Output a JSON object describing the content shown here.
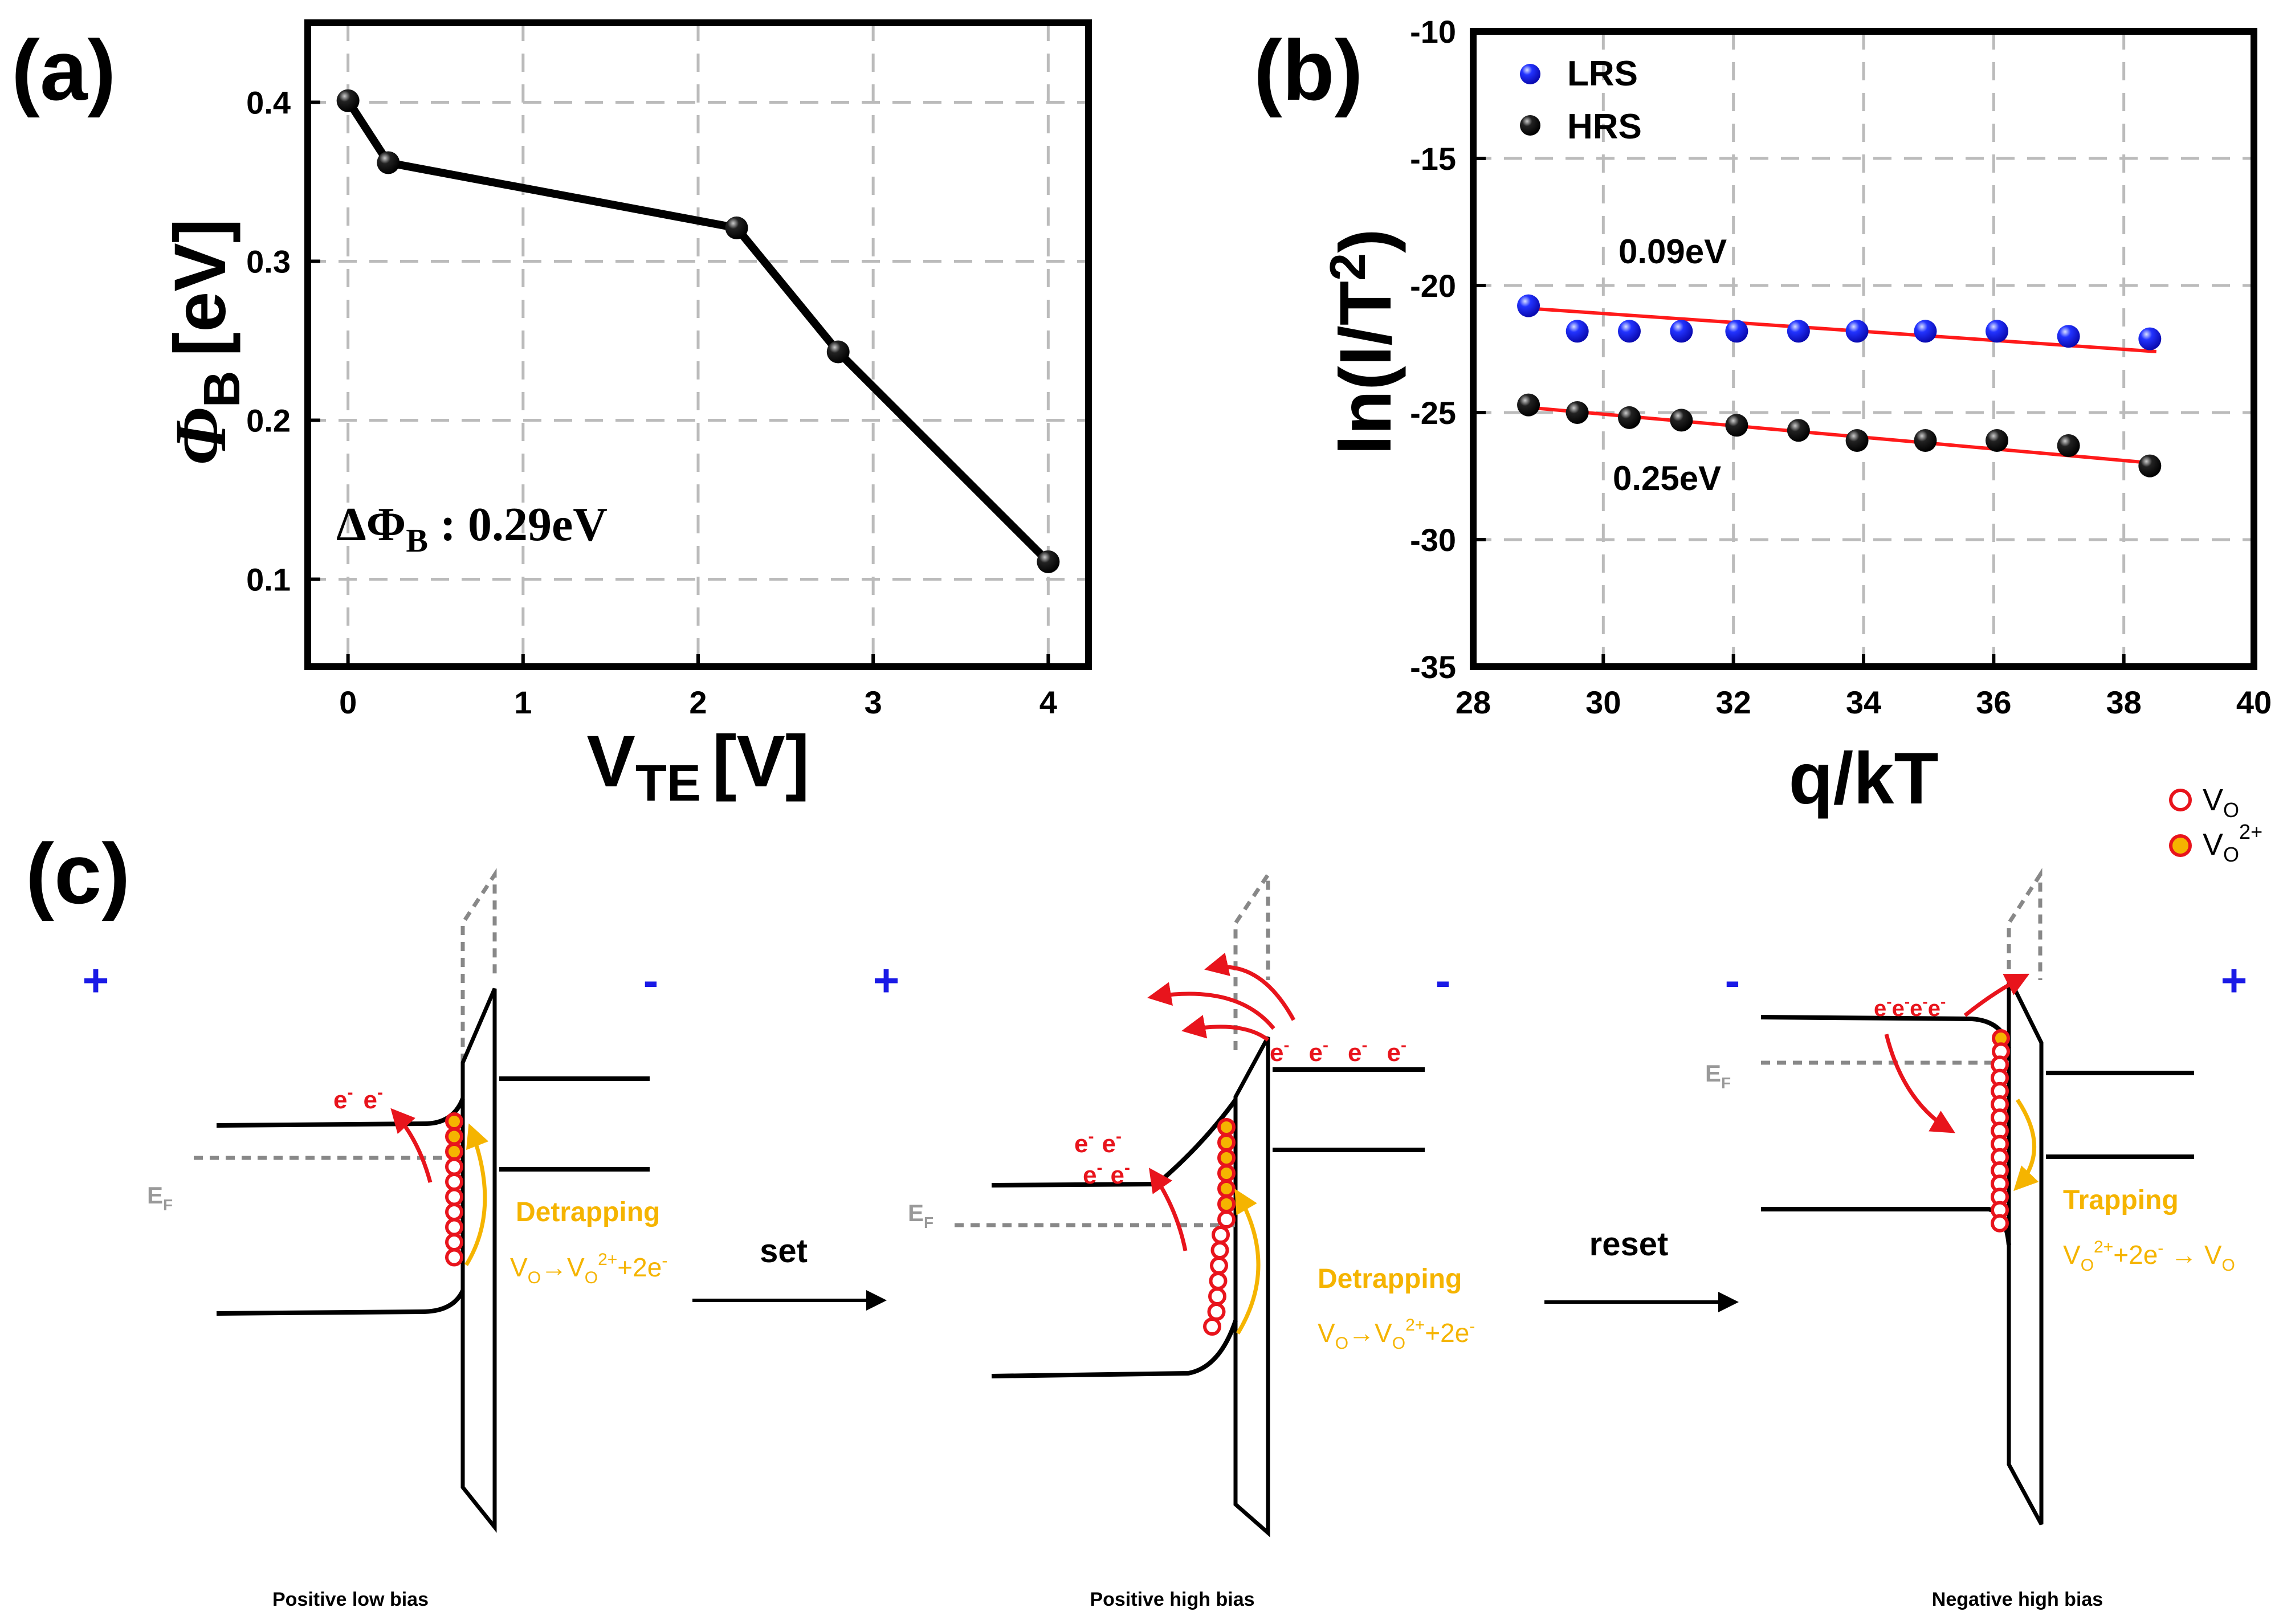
{
  "chart_data": [
    {
      "panel": "(a)",
      "type": "line",
      "xlabel": "V",
      "xlabel_sub": "TE",
      "xlabel_unit": "[V]",
      "ylabel_symbol": "Φ",
      "ylabel_sub": "B",
      "ylabel_unit": "[eV]",
      "x": [
        0,
        0.23,
        2.22,
        2.8,
        4.0
      ],
      "y": [
        0.401,
        0.362,
        0.321,
        0.243,
        0.111
      ],
      "xlim": [
        -0.23,
        4.23
      ],
      "ylim": [
        0.045,
        0.45
      ],
      "xticks": [
        0,
        1,
        2,
        3,
        4
      ],
      "xtick_labels": [
        "0",
        "1",
        "2",
        "3",
        "4"
      ],
      "yticks": [
        0.1,
        0.2,
        0.3,
        0.4
      ],
      "ytick_labels": [
        "0.1",
        "0.2",
        "0.3",
        "0.4"
      ],
      "grid": true,
      "annotation": {
        "prefix": "ΔΦ",
        "sub": "B",
        "text": " : 0.29eV"
      }
    },
    {
      "panel": "(b)",
      "type": "scatter",
      "xlabel": "q/kT",
      "ylabel_main": "ln(I/T",
      "ylabel_sup": "2",
      "ylabel_tail": ")",
      "xlim": [
        28,
        40
      ],
      "ylim": [
        -35,
        -10
      ],
      "xticks": [
        28,
        30,
        32,
        34,
        36,
        38,
        40
      ],
      "xtick_labels": [
        "28",
        "30",
        "32",
        "34",
        "36",
        "38",
        "40"
      ],
      "yticks": [
        -35,
        -30,
        -25,
        -20,
        -15,
        -10
      ],
      "ytick_labels": [
        "-35",
        "-30",
        "-25",
        "-20",
        "-15",
        "-10"
      ],
      "grid": true,
      "legend_position": "top-left",
      "series": [
        {
          "name": "LRS",
          "color": "#1f1fff",
          "x": [
            28.85,
            29.6,
            30.4,
            31.2,
            32.05,
            33.0,
            33.9,
            34.95,
            36.05,
            37.15,
            38.4
          ],
          "y": [
            -20.8,
            -21.8,
            -21.8,
            -21.8,
            -21.8,
            -21.8,
            -21.8,
            -21.8,
            -21.8,
            -22.0,
            -22.1
          ],
          "fit": {
            "x": [
              28.85,
              38.5
            ],
            "y": [
              -20.9,
              -22.6
            ]
          },
          "fit_label": "0.09eV"
        },
        {
          "name": "HRS",
          "color": "#111111",
          "x": [
            28.85,
            29.6,
            30.4,
            31.2,
            32.05,
            33.0,
            33.9,
            34.95,
            36.05,
            37.15,
            38.4
          ],
          "y": [
            -24.7,
            -25.0,
            -25.2,
            -25.3,
            -25.5,
            -25.7,
            -26.1,
            -26.1,
            -26.1,
            -26.3,
            -27.1
          ],
          "fit": {
            "x": [
              28.85,
              38.5
            ],
            "y": [
              -24.8,
              -27.0
            ]
          },
          "fit_label": "0.25eV"
        }
      ]
    }
  ],
  "panel_c": {
    "label": "(c)",
    "legend": {
      "vo": "V",
      "vo_sub": "O",
      "vo2": "V",
      "vo2_sub": "O",
      "vo2_sup": "2+"
    },
    "diagram1": {
      "left_sign": "+",
      "right_sign": "-",
      "electrons": "e",
      "electrons_sup": "-",
      "ef": "E",
      "ef_sub": "F",
      "process": "Detrapping",
      "reaction_parts": [
        "V",
        "O",
        "→V",
        "O",
        "2+",
        "+2e",
        "-"
      ],
      "caption": "Positive low bias"
    },
    "arrow1_label": "set",
    "diagram2": {
      "left_sign": "+",
      "right_sign": "-",
      "ef": "E",
      "ef_sub": "F",
      "process": "Detrapping",
      "reaction_parts": [
        "V",
        "O",
        "→V",
        "O",
        "2+",
        "+2e",
        "-"
      ],
      "caption": "Positive high bias"
    },
    "arrow2_label": "reset",
    "diagram3": {
      "left_sign": "-",
      "right_sign": "+",
      "ef": "E",
      "ef_sub": "F",
      "process": "Trapping",
      "reaction_parts": [
        "V",
        "O",
        "2+",
        "+2e",
        "-",
        " → V",
        "O"
      ],
      "caption": "Negative high bias"
    }
  }
}
